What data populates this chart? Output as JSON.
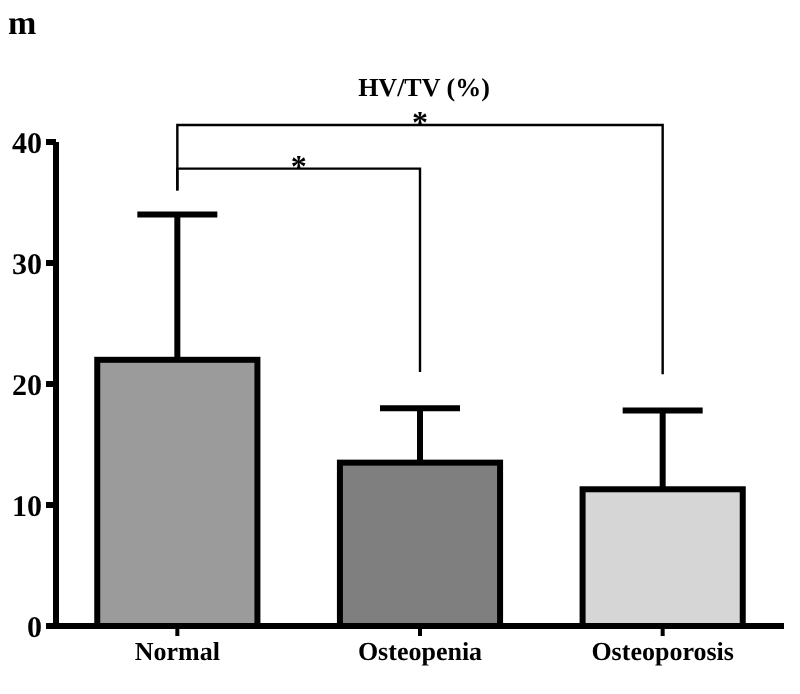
{
  "chart_data": {
    "type": "bar",
    "title": "HV/TV (%)",
    "categories": [
      "Normal",
      "Osteopenia",
      "Osteoporosis"
    ],
    "values": [
      22,
      13.5,
      11.3
    ],
    "errors": [
      12,
      4.5,
      6.5
    ],
    "colors": [
      "#9b9b9b",
      "#7f7f7f",
      "#d6d6d6"
    ],
    "ylim": [
      0,
      40
    ],
    "yticks": [
      0,
      10,
      20,
      30,
      40
    ],
    "annotations": [
      "m",
      "*",
      "*"
    ]
  }
}
